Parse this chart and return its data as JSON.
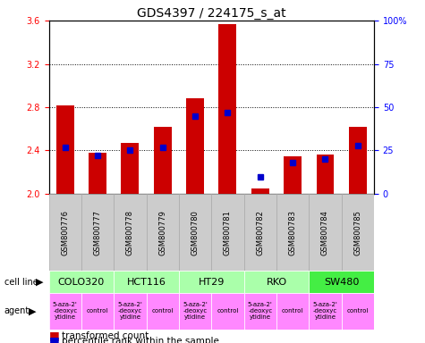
{
  "title": "GDS4397 / 224175_s_at",
  "samples": [
    "GSM800776",
    "GSM800777",
    "GSM800778",
    "GSM800779",
    "GSM800780",
    "GSM800781",
    "GSM800782",
    "GSM800783",
    "GSM800784",
    "GSM800785"
  ],
  "red_values": [
    2.82,
    2.38,
    2.47,
    2.62,
    2.88,
    3.57,
    2.05,
    2.35,
    2.36,
    2.62
  ],
  "blue_values_pct": [
    27,
    22,
    25,
    27,
    45,
    47,
    10,
    18,
    20,
    28
  ],
  "ylim": [
    2.0,
    3.6
  ],
  "yticks_left": [
    2.0,
    2.4,
    2.8,
    3.2,
    3.6
  ],
  "yticks_right": [
    0,
    25,
    50,
    75,
    100
  ],
  "y_right_labels": [
    "0",
    "25",
    "50",
    "75",
    "100%"
  ],
  "cell_lines_info": [
    [
      "COLO320",
      0,
      2,
      "#aaffaa"
    ],
    [
      "HCT116",
      2,
      4,
      "#aaffaa"
    ],
    [
      "HT29",
      4,
      6,
      "#aaffaa"
    ],
    [
      "RKO",
      6,
      8,
      "#aaffaa"
    ],
    [
      "SW480",
      8,
      10,
      "#44ee44"
    ]
  ],
  "agent_labels": [
    "5-aza-2'\n-deoxyc\nytidine",
    "control",
    "5-aza-2'\n-deoxyc\nytidine",
    "control",
    "5-aza-2'\n-deoxyc\nytidine",
    "control",
    "5-aza-2'\n-deoxyc\nytidine",
    "control",
    "5-aza-2'\n-deoxyc\nytidine",
    "control"
  ],
  "agent_color": "#ff88ff",
  "bar_color": "#cc0000",
  "dot_color": "#0000cc",
  "bar_width": 0.55,
  "sample_bg": "#cccccc",
  "title_fontsize": 10,
  "tick_fontsize": 7,
  "sample_fontsize": 6,
  "cell_fontsize": 8,
  "agent_fontsize": 5,
  "legend_fontsize": 7.5
}
